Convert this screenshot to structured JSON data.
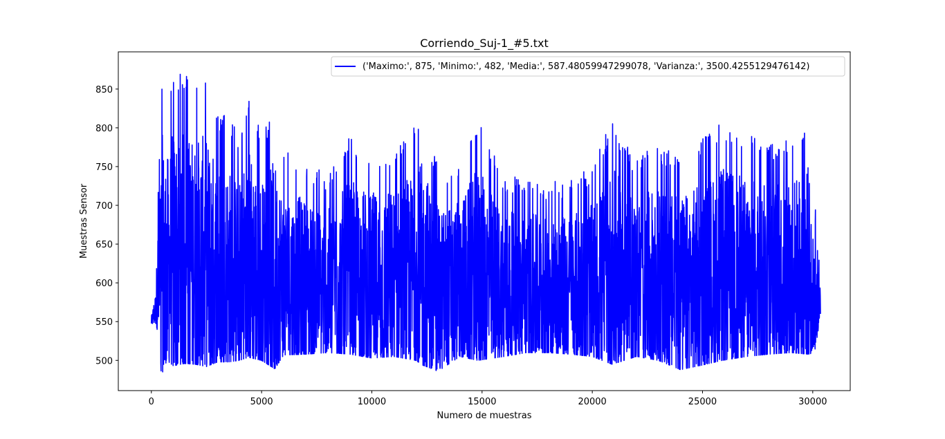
{
  "chart_data": {
    "type": "line",
    "title": "Corriendo_Suj-1_#5.txt",
    "xlabel": "Numero de muestras",
    "ylabel": "Muestras Sensor",
    "xlim": [
      -1500,
      31700
    ],
    "ylim": [
      461,
      898
    ],
    "xticks": [
      0,
      5000,
      10000,
      15000,
      20000,
      25000,
      30000
    ],
    "yticks": [
      500,
      550,
      600,
      650,
      700,
      750,
      800,
      850
    ],
    "grid": false,
    "legend_position": "top-right",
    "series": [
      {
        "name": "('Maximo:', 875, 'Minimo:', 482, 'Media:', 587.48059947299078, 'Varianza:', 3500.4255129476142)",
        "color": "#0000ff",
        "n_samples": 30350,
        "stats": {
          "max": 875,
          "min": 482,
          "mean": 587.4805994729908,
          "variance": 3500.425512947614
        },
        "envelope": {
          "x": [
            0,
            200,
            300,
            400,
            500,
            700,
            1000,
            1500,
            2000,
            2500,
            3000,
            3500,
            4000,
            4400,
            5000,
            5600,
            6000,
            7000,
            8000,
            9000,
            10000,
            11000,
            12000,
            12300,
            13000,
            14000,
            14800,
            16000,
            17000,
            18000,
            19000,
            20000,
            20900,
            22000,
            23000,
            24000,
            25000,
            25900,
            27000,
            28000,
            29000,
            29800,
            30100,
            30350
          ],
          "upper": [
            560,
            600,
            720,
            808,
            870,
            825,
            875,
            872,
            860,
            866,
            820,
            816,
            790,
            850,
            790,
            827,
            770,
            760,
            740,
            788,
            770,
            775,
            805,
            822,
            750,
            755,
            811,
            740,
            735,
            730,
            733,
            750,
            812,
            760,
            780,
            765,
            790,
            810,
            795,
            780,
            790,
            812,
            700,
            640
          ],
          "lower": [
            545,
            548,
            535,
            482,
            484,
            500,
            493,
            496,
            495,
            492,
            498,
            498,
            500,
            504,
            500,
            489,
            507,
            508,
            510,
            508,
            503,
            505,
            500,
            494,
            486,
            505,
            500,
            505,
            510,
            510,
            508,
            505,
            495,
            505,
            500,
            488,
            494,
            500,
            505,
            508,
            510,
            508,
            510,
            560
          ]
        }
      }
    ]
  }
}
